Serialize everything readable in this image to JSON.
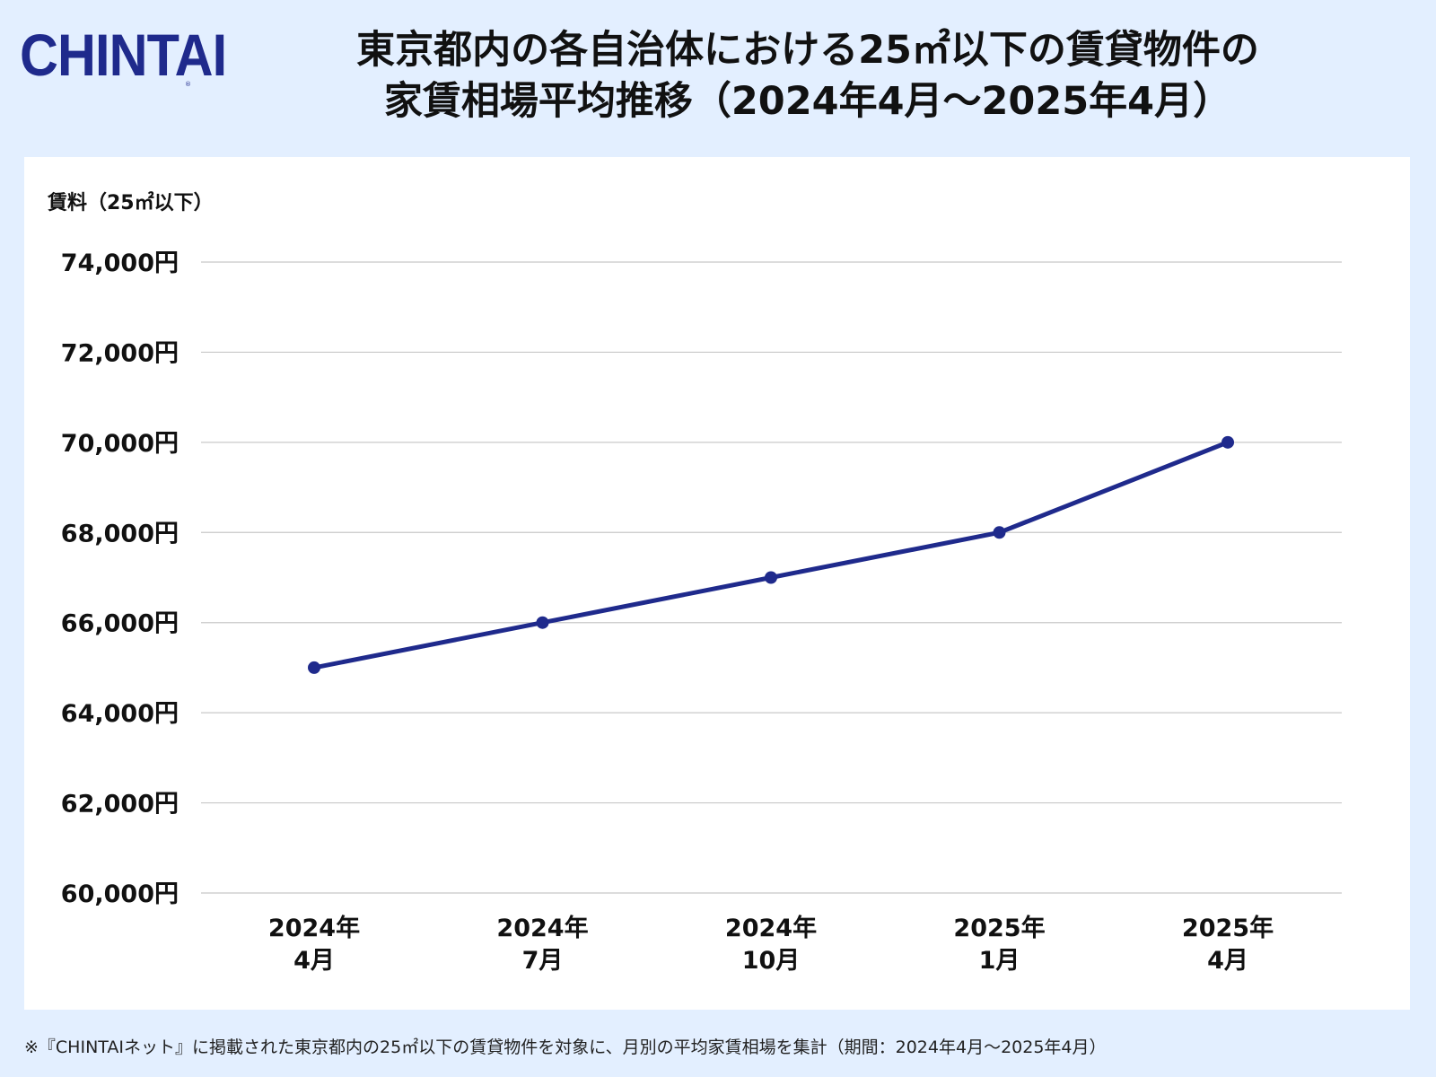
{
  "brand": {
    "logo_text": "CHINTAI",
    "registered_mark": "®"
  },
  "title": {
    "line1": "東京都内の各自治体における25㎡以下の賃貸物件の",
    "line2": "家賃相場平均推移（2024年4月〜2025年4月）"
  },
  "chart_data": {
    "type": "line",
    "title": "東京都内の各自治体における25㎡以下の賃貸物件の家賃相場平均推移（2024年4月〜2025年4月）",
    "ylabel": "賃料（25㎡以下）",
    "xlabel": "",
    "categories": [
      [
        "2024年",
        "4月"
      ],
      [
        "2024年",
        "7月"
      ],
      [
        "2024年",
        "10月"
      ],
      [
        "2025年",
        "1月"
      ],
      [
        "2025年",
        "4月"
      ]
    ],
    "series": [
      {
        "name": "家賃相場平均",
        "values": [
          65000,
          66000,
          67000,
          68000,
          70000
        ],
        "color": "#1f2a8c"
      }
    ],
    "ylim": [
      60000,
      74000
    ],
    "yticks": [
      60000,
      62000,
      64000,
      66000,
      68000,
      70000,
      72000,
      74000
    ],
    "ytick_labels": [
      "60,000円",
      "62,000円",
      "64,000円",
      "66,000円",
      "68,000円",
      "70,000円",
      "72,000円",
      "74,000円"
    ],
    "grid": true,
    "grid_color": "#c8c8c8"
  },
  "footnote": "※『CHINTAIネット』に掲載された東京都内の25㎡以下の賃貸物件を対象に、月別の平均家賃相場を集計（期間：2024年4月〜2025年4月）"
}
